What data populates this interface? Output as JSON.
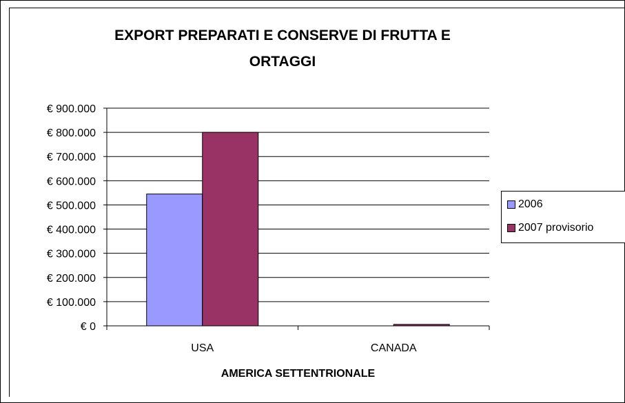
{
  "chart_data": {
    "type": "bar",
    "title": "EXPORT PREPARATI E CONSERVE DI FRUTTA E ORTAGGI",
    "title_lines": [
      "EXPORT PREPARATI E CONSERVE DI FRUTTA E",
      "ORTAGGI"
    ],
    "xlabel": "AMERICA SETTENTRIONALE",
    "ylabel": "",
    "categories": [
      "USA",
      "CANADA"
    ],
    "series": [
      {
        "name": "2006",
        "color": "#9999ff",
        "values": [
          545000,
          0
        ]
      },
      {
        "name": "2007 provisorio",
        "color": "#993366",
        "values": [
          800000,
          6000
        ]
      }
    ],
    "ylim": [
      0,
      900000
    ],
    "yticks": [
      0,
      100000,
      200000,
      300000,
      400000,
      500000,
      600000,
      700000,
      800000,
      900000
    ],
    "ytick_labels": [
      "€ 0",
      "€ 100.000",
      "€ 200.000",
      "€ 300.000",
      "€ 400.000",
      "€ 500.000",
      "€ 600.000",
      "€ 700.000",
      "€ 800.000",
      "€ 900.000"
    ],
    "grid": true,
    "legend_position": "right"
  }
}
